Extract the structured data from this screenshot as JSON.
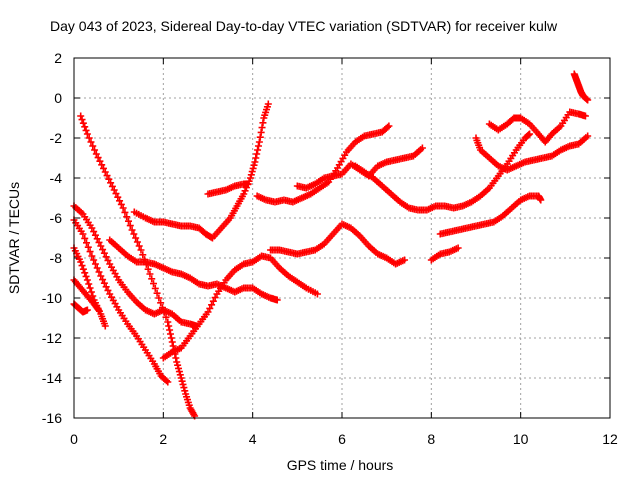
{
  "chart_data": {
    "type": "scatter",
    "title": "Day 043 of 2023, Sidereal Day-to-day VTEC variation (SDTVAR) for receiver kulw",
    "xlabel": "GPS time / hours",
    "ylabel": "SDTVAR / TECUs",
    "xlim": [
      0,
      12
    ],
    "ylim": [
      -16,
      2
    ],
    "xticks": [
      0,
      2,
      4,
      6,
      8,
      10,
      12
    ],
    "yticks": [
      -16,
      -14,
      -12,
      -10,
      -8,
      -6,
      -4,
      -2,
      0,
      2
    ],
    "xtick_labels": [
      "0",
      "2",
      "4",
      "6",
      "8",
      "10",
      "12"
    ],
    "ytick_labels": [
      "-16",
      "-14",
      "-12",
      "-10",
      "-8",
      "-6",
      "-4",
      "-2",
      "0",
      "2"
    ],
    "grid": true,
    "marker": "+",
    "color": "#ff0000",
    "series": [
      {
        "points": [
          [
            0.15,
            -0.9
          ],
          [
            0.3,
            -1.8
          ],
          [
            0.5,
            -2.8
          ],
          [
            0.7,
            -3.7
          ],
          [
            0.9,
            -4.6
          ],
          [
            1.1,
            -5.5
          ],
          [
            1.3,
            -6.6
          ],
          [
            1.5,
            -7.6
          ],
          [
            1.7,
            -8.8
          ],
          [
            1.9,
            -10.0
          ],
          [
            2.1,
            -11.2
          ],
          [
            2.2,
            -12.2
          ],
          [
            2.3,
            -13.2
          ],
          [
            2.4,
            -14.0
          ],
          [
            2.5,
            -14.8
          ],
          [
            2.6,
            -15.5
          ],
          [
            2.7,
            -15.9
          ]
        ]
      },
      {
        "points": [
          [
            0.0,
            -5.4
          ],
          [
            0.2,
            -5.8
          ],
          [
            0.4,
            -6.5
          ],
          [
            0.6,
            -7.4
          ],
          [
            0.8,
            -8.3
          ],
          [
            1.0,
            -9.1
          ],
          [
            1.2,
            -9.7
          ],
          [
            1.4,
            -10.2
          ],
          [
            1.6,
            -10.6
          ],
          [
            1.8,
            -10.8
          ],
          [
            2.0,
            -10.6
          ],
          [
            2.2,
            -10.8
          ],
          [
            2.4,
            -11.2
          ],
          [
            2.6,
            -11.3
          ],
          [
            2.75,
            -11.4
          ]
        ]
      },
      {
        "points": [
          [
            0.0,
            -6.1
          ],
          [
            0.2,
            -6.8
          ],
          [
            0.4,
            -7.9
          ],
          [
            0.6,
            -8.9
          ],
          [
            0.8,
            -9.8
          ],
          [
            1.0,
            -10.6
          ],
          [
            1.2,
            -11.3
          ],
          [
            1.4,
            -11.9
          ],
          [
            1.6,
            -12.6
          ],
          [
            1.8,
            -13.3
          ],
          [
            1.95,
            -13.9
          ],
          [
            2.1,
            -14.2
          ]
        ]
      },
      {
        "points": [
          [
            0.0,
            -7.5
          ],
          [
            0.15,
            -8.2
          ],
          [
            0.3,
            -9.1
          ],
          [
            0.45,
            -10.1
          ],
          [
            0.6,
            -10.8
          ],
          [
            0.7,
            -11.4
          ]
        ]
      },
      {
        "points": [
          [
            0.0,
            -9.1
          ],
          [
            0.15,
            -9.5
          ],
          [
            0.3,
            -9.9
          ],
          [
            0.45,
            -10.3
          ],
          [
            0.55,
            -10.6
          ]
        ]
      },
      {
        "points": [
          [
            0.0,
            -10.3
          ],
          [
            0.1,
            -10.5
          ],
          [
            0.2,
            -10.7
          ],
          [
            0.3,
            -10.6
          ]
        ]
      },
      {
        "points": [
          [
            0.8,
            -7.1
          ],
          [
            1.0,
            -7.5
          ],
          [
            1.2,
            -7.9
          ],
          [
            1.4,
            -8.2
          ],
          [
            1.6,
            -8.2
          ],
          [
            1.8,
            -8.3
          ],
          [
            2.0,
            -8.5
          ],
          [
            2.2,
            -8.7
          ],
          [
            2.4,
            -8.8
          ],
          [
            2.6,
            -9.0
          ],
          [
            2.8,
            -9.3
          ],
          [
            3.0,
            -9.4
          ],
          [
            3.2,
            -9.3
          ],
          [
            3.4,
            -9.5
          ],
          [
            3.6,
            -9.7
          ],
          [
            3.8,
            -9.5
          ],
          [
            4.0,
            -9.5
          ],
          [
            4.2,
            -9.8
          ],
          [
            4.4,
            -10.0
          ],
          [
            4.55,
            -10.1
          ]
        ]
      },
      {
        "points": [
          [
            1.35,
            -5.7
          ],
          [
            1.6,
            -6.0
          ],
          [
            1.8,
            -6.2
          ],
          [
            2.0,
            -6.2
          ],
          [
            2.2,
            -6.3
          ],
          [
            2.4,
            -6.4
          ],
          [
            2.6,
            -6.4
          ],
          [
            2.8,
            -6.5
          ],
          [
            2.95,
            -6.8
          ],
          [
            3.1,
            -7.0
          ],
          [
            3.3,
            -6.5
          ],
          [
            3.5,
            -6.0
          ],
          [
            3.65,
            -5.4
          ],
          [
            3.8,
            -4.8
          ],
          [
            3.95,
            -4.0
          ],
          [
            4.05,
            -3.2
          ],
          [
            4.15,
            -2.2
          ],
          [
            4.25,
            -1.0
          ],
          [
            4.35,
            -0.3
          ]
        ]
      },
      {
        "points": [
          [
            3.0,
            -4.8
          ],
          [
            3.2,
            -4.7
          ],
          [
            3.4,
            -4.6
          ],
          [
            3.6,
            -4.4
          ],
          [
            3.8,
            -4.3
          ],
          [
            3.9,
            -4.3
          ]
        ]
      },
      {
        "points": [
          [
            2.0,
            -13.0
          ],
          [
            2.2,
            -12.7
          ],
          [
            2.4,
            -12.5
          ],
          [
            2.6,
            -11.9
          ],
          [
            2.8,
            -11.3
          ],
          [
            3.0,
            -10.7
          ],
          [
            3.2,
            -9.8
          ],
          [
            3.4,
            -9.1
          ],
          [
            3.6,
            -8.6
          ],
          [
            3.8,
            -8.3
          ],
          [
            4.0,
            -8.2
          ],
          [
            4.2,
            -7.9
          ],
          [
            4.4,
            -8.0
          ],
          [
            4.6,
            -8.5
          ],
          [
            4.8,
            -8.9
          ],
          [
            5.0,
            -9.2
          ],
          [
            5.2,
            -9.5
          ],
          [
            5.45,
            -9.8
          ]
        ]
      },
      {
        "points": [
          [
            4.4,
            -7.6
          ],
          [
            4.6,
            -7.6
          ],
          [
            4.8,
            -7.7
          ],
          [
            5.0,
            -7.8
          ],
          [
            5.2,
            -7.7
          ],
          [
            5.4,
            -7.6
          ],
          [
            5.6,
            -7.3
          ],
          [
            5.8,
            -6.8
          ],
          [
            6.0,
            -6.3
          ],
          [
            6.2,
            -6.5
          ],
          [
            6.4,
            -6.9
          ],
          [
            6.6,
            -7.4
          ],
          [
            6.8,
            -7.8
          ],
          [
            7.0,
            -8.0
          ],
          [
            7.2,
            -8.3
          ],
          [
            7.4,
            -8.1
          ]
        ]
      },
      {
        "points": [
          [
            4.1,
            -4.9
          ],
          [
            4.3,
            -5.1
          ],
          [
            4.5,
            -5.2
          ],
          [
            4.7,
            -5.1
          ],
          [
            4.9,
            -5.2
          ],
          [
            5.1,
            -5.0
          ],
          [
            5.3,
            -4.8
          ],
          [
            5.5,
            -4.5
          ],
          [
            5.7,
            -4.2
          ],
          [
            5.9,
            -3.5
          ],
          [
            6.1,
            -2.7
          ],
          [
            6.3,
            -2.2
          ],
          [
            6.5,
            -1.9
          ],
          [
            6.7,
            -1.8
          ],
          [
            6.9,
            -1.7
          ],
          [
            7.05,
            -1.4
          ]
        ]
      },
      {
        "points": [
          [
            5.0,
            -4.4
          ],
          [
            5.2,
            -4.5
          ],
          [
            5.4,
            -4.3
          ],
          [
            5.6,
            -4.0
          ],
          [
            5.8,
            -3.9
          ],
          [
            6.0,
            -3.8
          ],
          [
            6.2,
            -3.3
          ],
          [
            6.4,
            -3.6
          ],
          [
            6.6,
            -3.9
          ],
          [
            6.8,
            -3.4
          ],
          [
            7.0,
            -3.2
          ],
          [
            7.2,
            -3.1
          ],
          [
            7.4,
            -3.0
          ],
          [
            7.6,
            -2.9
          ],
          [
            7.8,
            -2.5
          ]
        ]
      },
      {
        "points": [
          [
            6.3,
            -3.4
          ],
          [
            6.5,
            -3.7
          ],
          [
            6.7,
            -4.0
          ],
          [
            6.9,
            -4.4
          ],
          [
            7.1,
            -4.8
          ],
          [
            7.3,
            -5.2
          ],
          [
            7.5,
            -5.5
          ],
          [
            7.7,
            -5.6
          ],
          [
            7.9,
            -5.6
          ],
          [
            8.1,
            -5.4
          ],
          [
            8.3,
            -5.4
          ],
          [
            8.5,
            -5.5
          ],
          [
            8.7,
            -5.4
          ],
          [
            8.9,
            -5.2
          ],
          [
            9.1,
            -4.9
          ],
          [
            9.3,
            -4.5
          ],
          [
            9.5,
            -3.9
          ],
          [
            9.7,
            -3.3
          ],
          [
            9.9,
            -2.6
          ],
          [
            10.1,
            -2.0
          ],
          [
            10.2,
            -1.8
          ]
        ]
      },
      {
        "points": [
          [
            8.0,
            -8.1
          ],
          [
            8.2,
            -7.8
          ],
          [
            8.4,
            -7.7
          ],
          [
            8.6,
            -7.5
          ]
        ]
      },
      {
        "points": [
          [
            8.2,
            -6.8
          ],
          [
            8.4,
            -6.7
          ],
          [
            8.6,
            -6.6
          ],
          [
            8.8,
            -6.5
          ],
          [
            9.0,
            -6.4
          ],
          [
            9.2,
            -6.3
          ],
          [
            9.4,
            -6.2
          ],
          [
            9.6,
            -5.9
          ],
          [
            9.8,
            -5.5
          ],
          [
            10.0,
            -5.1
          ],
          [
            10.2,
            -4.9
          ],
          [
            10.4,
            -4.9
          ],
          [
            10.45,
            -5.1
          ]
        ]
      },
      {
        "points": [
          [
            9.0,
            -2.0
          ],
          [
            9.1,
            -2.6
          ],
          [
            9.3,
            -3.0
          ],
          [
            9.5,
            -3.4
          ],
          [
            9.7,
            -3.6
          ],
          [
            9.9,
            -3.4
          ],
          [
            10.1,
            -3.2
          ],
          [
            10.3,
            -3.1
          ],
          [
            10.5,
            -3.0
          ],
          [
            10.7,
            -2.9
          ],
          [
            10.9,
            -2.6
          ],
          [
            11.1,
            -2.4
          ],
          [
            11.3,
            -2.3
          ],
          [
            11.5,
            -1.9
          ]
        ]
      },
      {
        "points": [
          [
            9.3,
            -1.3
          ],
          [
            9.5,
            -1.6
          ],
          [
            9.7,
            -1.3
          ],
          [
            9.85,
            -1.0
          ],
          [
            10.0,
            -1.0
          ],
          [
            10.2,
            -1.3
          ],
          [
            10.4,
            -1.8
          ],
          [
            10.55,
            -2.2
          ],
          [
            10.7,
            -1.8
          ],
          [
            10.9,
            -1.4
          ],
          [
            11.1,
            -0.7
          ],
          [
            11.3,
            -0.8
          ],
          [
            11.45,
            -0.9
          ]
        ]
      },
      {
        "points": [
          [
            11.2,
            1.2
          ],
          [
            11.25,
            0.9
          ],
          [
            11.3,
            0.6
          ],
          [
            11.35,
            0.3
          ],
          [
            11.4,
            0.1
          ],
          [
            11.5,
            -0.1
          ]
        ]
      }
    ]
  }
}
